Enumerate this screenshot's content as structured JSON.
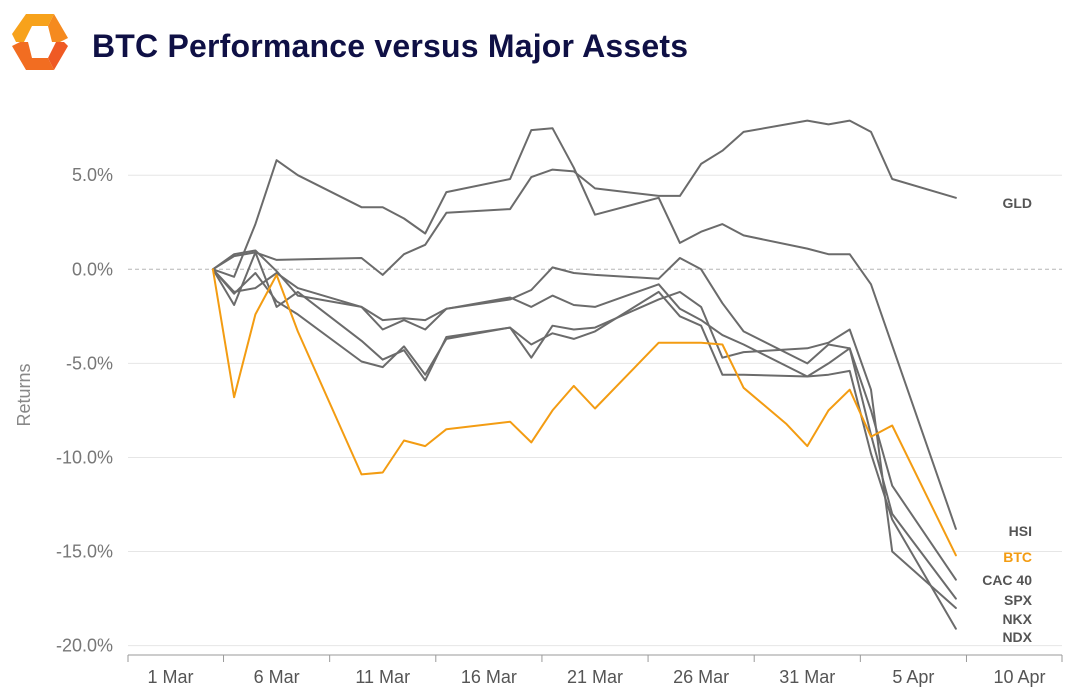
{
  "header": {
    "title": "BTC Performance versus Major Assets",
    "logo_colors": [
      "#f7a21b",
      "#ef5a24"
    ]
  },
  "chart_data": {
    "type": "line",
    "title": "BTC Performance versus Major Assets",
    "xlabel": "",
    "ylabel": "Returns",
    "y_unit": "%",
    "ylim": [
      -20.5,
      8.2
    ],
    "y_ticks": [
      5,
      0,
      -5,
      -10,
      -15,
      -20
    ],
    "y_tick_labels": [
      "5.0%",
      "0.0%",
      "-5.0%",
      "-10.0%",
      "-15.0%",
      "-20.0%"
    ],
    "x_ticks": [
      "2025-03-01",
      "2025-03-06",
      "2025-03-11",
      "2025-03-16",
      "2025-03-21",
      "2025-03-26",
      "2025-03-31",
      "2025-04-05",
      "2025-04-10"
    ],
    "x_tick_labels": [
      "1 Mar",
      "6 Mar",
      "11 Mar",
      "16 Mar",
      "21 Mar",
      "26 Mar",
      "31 Mar",
      "5 Apr",
      "10 Apr"
    ],
    "xlim": [
      "2025-02-27",
      "2025-04-12"
    ],
    "grid": "horizontal",
    "zero_line": "dashed",
    "colors": {
      "btc": "#f39c12",
      "other": "#6b6b6b"
    },
    "series": [
      {
        "name": "GLD",
        "color": "#6b6b6b",
        "x": [
          "2025-03-03",
          "2025-03-04",
          "2025-03-05",
          "2025-03-06",
          "2025-03-10",
          "2025-03-11",
          "2025-03-12",
          "2025-03-13",
          "2025-03-14",
          "2025-03-17",
          "2025-03-18",
          "2025-03-19",
          "2025-03-20",
          "2025-03-21",
          "2025-03-24",
          "2025-03-25",
          "2025-03-26",
          "2025-03-27",
          "2025-03-28",
          "2025-03-31",
          "2025-04-01",
          "2025-04-02",
          "2025-04-03",
          "2025-04-04",
          "2025-04-07"
        ],
        "y": [
          0.0,
          0.7,
          0.9,
          0.5,
          0.6,
          -0.3,
          0.8,
          1.3,
          3.0,
          3.2,
          4.9,
          5.3,
          5.2,
          4.3,
          3.9,
          3.9,
          5.6,
          6.3,
          7.3,
          7.9,
          7.7,
          7.9,
          7.3,
          4.8,
          3.8
        ]
      },
      {
        "name": "HSI",
        "color": "#6b6b6b",
        "x": [
          "2025-03-03",
          "2025-03-04",
          "2025-03-05",
          "2025-03-06",
          "2025-03-07",
          "2025-03-10",
          "2025-03-11",
          "2025-03-12",
          "2025-03-13",
          "2025-03-14",
          "2025-03-17",
          "2025-03-18",
          "2025-03-19",
          "2025-03-20",
          "2025-03-21",
          "2025-03-24",
          "2025-03-25",
          "2025-03-26",
          "2025-03-27",
          "2025-03-28",
          "2025-03-31",
          "2025-04-01",
          "2025-04-02",
          "2025-04-03",
          "2025-04-07"
        ],
        "y": [
          0.0,
          -0.4,
          2.4,
          5.8,
          5.0,
          3.3,
          3.3,
          2.7,
          1.9,
          4.1,
          4.8,
          7.4,
          7.5,
          5.4,
          2.9,
          3.8,
          1.4,
          2.0,
          2.4,
          1.8,
          1.1,
          0.8,
          0.8,
          -0.8,
          -13.8
        ]
      },
      {
        "name": "BTC",
        "color": "#f39c12",
        "x": [
          "2025-03-03",
          "2025-03-04",
          "2025-03-05",
          "2025-03-06",
          "2025-03-07",
          "2025-03-10",
          "2025-03-11",
          "2025-03-12",
          "2025-03-13",
          "2025-03-14",
          "2025-03-17",
          "2025-03-18",
          "2025-03-19",
          "2025-03-20",
          "2025-03-21",
          "2025-03-24",
          "2025-03-25",
          "2025-03-26",
          "2025-03-27",
          "2025-03-28",
          "2025-03-30",
          "2025-03-31",
          "2025-04-01",
          "2025-04-02",
          "2025-04-03",
          "2025-04-04",
          "2025-04-07"
        ],
        "y": [
          0.0,
          -6.8,
          -2.4,
          -0.3,
          -3.3,
          -10.9,
          -10.8,
          -9.1,
          -9.4,
          -8.5,
          -8.1,
          -9.2,
          -7.5,
          -6.2,
          -7.4,
          -3.9,
          -3.9,
          -3.9,
          -4.0,
          -6.3,
          -8.2,
          -9.4,
          -7.5,
          -6.4,
          -8.9,
          -8.3,
          -15.2
        ]
      },
      {
        "name": "CAC 40",
        "color": "#6b6b6b",
        "x": [
          "2025-03-03",
          "2025-03-04",
          "2025-03-05",
          "2025-03-06",
          "2025-03-07",
          "2025-03-10",
          "2025-03-11",
          "2025-03-12",
          "2025-03-13",
          "2025-03-14",
          "2025-03-17",
          "2025-03-18",
          "2025-03-19",
          "2025-03-20",
          "2025-03-21",
          "2025-03-24",
          "2025-03-25",
          "2025-03-26",
          "2025-03-27",
          "2025-03-28",
          "2025-03-31",
          "2025-04-01",
          "2025-04-02",
          "2025-04-03",
          "2025-04-04",
          "2025-04-07"
        ],
        "y": [
          0.0,
          0.8,
          1.0,
          -0.1,
          -1.4,
          -2.0,
          -2.7,
          -2.6,
          -2.7,
          -2.1,
          -1.6,
          -1.1,
          0.1,
          -0.2,
          -0.3,
          -0.5,
          0.6,
          0.0,
          -1.8,
          -3.3,
          -5.0,
          -4.0,
          -4.2,
          -7.5,
          -11.5,
          -16.5
        ]
      },
      {
        "name": "SPX",
        "color": "#6b6b6b",
        "x": [
          "2025-03-03",
          "2025-03-04",
          "2025-03-05",
          "2025-03-06",
          "2025-03-07",
          "2025-03-10",
          "2025-03-11",
          "2025-03-12",
          "2025-03-13",
          "2025-03-14",
          "2025-03-17",
          "2025-03-18",
          "2025-03-19",
          "2025-03-20",
          "2025-03-21",
          "2025-03-24",
          "2025-03-25",
          "2025-03-26",
          "2025-03-27",
          "2025-03-28",
          "2025-03-31",
          "2025-04-01",
          "2025-04-02",
          "2025-04-03",
          "2025-04-04",
          "2025-04-07"
        ],
        "y": [
          0.0,
          -1.2,
          -1.0,
          -0.2,
          -1.0,
          -2.0,
          -3.2,
          -2.7,
          -3.2,
          -2.1,
          -1.5,
          -2.0,
          -1.4,
          -1.9,
          -2.0,
          -0.8,
          -2.1,
          -2.7,
          -3.5,
          -4.0,
          -5.7,
          -5.0,
          -4.2,
          -8.8,
          -13.0,
          -17.5
        ]
      },
      {
        "name": "NKX",
        "color": "#6b6b6b",
        "x": [
          "2025-03-03",
          "2025-03-04",
          "2025-03-05",
          "2025-03-06",
          "2025-03-07",
          "2025-03-10",
          "2025-03-11",
          "2025-03-12",
          "2025-03-13",
          "2025-03-14",
          "2025-03-17",
          "2025-03-18",
          "2025-03-19",
          "2025-03-20",
          "2025-03-21",
          "2025-03-24",
          "2025-03-25",
          "2025-03-26",
          "2025-03-27",
          "2025-03-28",
          "2025-03-31",
          "2025-04-01",
          "2025-04-02",
          "2025-04-03",
          "2025-04-04",
          "2025-04-07"
        ],
        "y": [
          0.0,
          -1.9,
          0.9,
          -2.0,
          -1.2,
          -3.8,
          -4.8,
          -4.3,
          -5.9,
          -3.6,
          -3.1,
          -4.7,
          -3.0,
          -3.2,
          -3.1,
          -1.6,
          -1.2,
          -2.0,
          -4.7,
          -4.4,
          -4.2,
          -3.9,
          -3.2,
          -6.4,
          -15.0,
          -18.0
        ]
      },
      {
        "name": "NDX",
        "color": "#6b6b6b",
        "x": [
          "2025-03-03",
          "2025-03-04",
          "2025-03-05",
          "2025-03-06",
          "2025-03-07",
          "2025-03-10",
          "2025-03-11",
          "2025-03-12",
          "2025-03-13",
          "2025-03-14",
          "2025-03-17",
          "2025-03-18",
          "2025-03-19",
          "2025-03-20",
          "2025-03-21",
          "2025-03-24",
          "2025-03-25",
          "2025-03-26",
          "2025-03-27",
          "2025-03-28",
          "2025-03-31",
          "2025-04-01",
          "2025-04-02",
          "2025-04-03",
          "2025-04-04",
          "2025-04-07"
        ],
        "y": [
          0.0,
          -1.3,
          -0.2,
          -1.7,
          -2.4,
          -4.9,
          -5.2,
          -4.1,
          -5.6,
          -3.7,
          -3.1,
          -4.0,
          -3.4,
          -3.7,
          -3.3,
          -1.2,
          -2.5,
          -3.0,
          -5.6,
          -5.6,
          -5.7,
          -5.6,
          -5.4,
          -9.8,
          -13.3,
          -19.1
        ]
      }
    ],
    "label_order": [
      "GLD",
      "HSI",
      "BTC",
      "CAC 40",
      "SPX",
      "NKX",
      "NDX"
    ]
  }
}
